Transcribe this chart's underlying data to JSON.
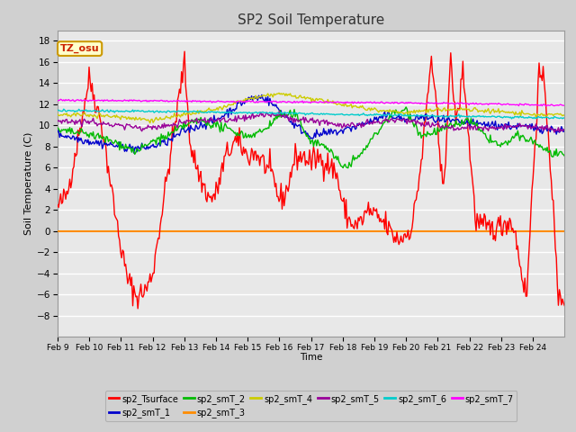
{
  "title": "SP2 Soil Temperature",
  "xlabel": "Time",
  "ylabel": "Soil Temperature (C)",
  "ylim": [
    -10,
    19
  ],
  "yticks": [
    -8,
    -6,
    -4,
    -2,
    0,
    2,
    4,
    6,
    8,
    10,
    12,
    14,
    16,
    18
  ],
  "x_labels": [
    "Feb 9",
    "Feb 10",
    "Feb 11",
    "Feb 12",
    "Feb 13",
    "Feb 14",
    "Feb 15",
    "Feb 16",
    "Feb 17",
    "Feb 18",
    "Feb 19",
    "Feb 20",
    "Feb 21",
    "Feb 22",
    "Feb 23",
    "Feb 24"
  ],
  "tz_label": "TZ_osu",
  "fig_bg": "#d0d0d0",
  "plot_bg": "#e8e8e8",
  "grid_color": "#ffffff",
  "series_colors": {
    "sp2_Tsurface": "#ff0000",
    "sp2_smT_1": "#0000cc",
    "sp2_smT_2": "#00bb00",
    "sp2_smT_3": "#ff8c00",
    "sp2_smT_4": "#cccc00",
    "sp2_smT_5": "#990099",
    "sp2_smT_6": "#00cccc",
    "sp2_smT_7": "#ff00ff"
  }
}
